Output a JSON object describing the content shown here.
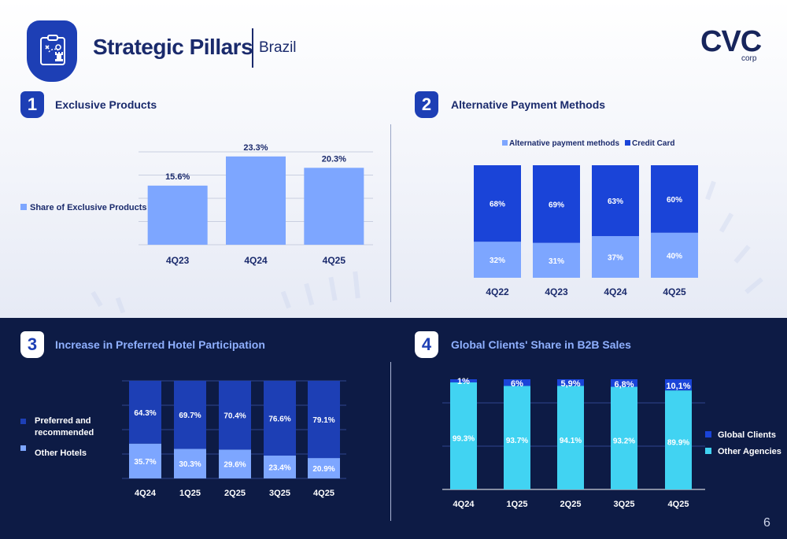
{
  "header": {
    "title": "Strategic Pillars",
    "subtitle": "Brazil",
    "logo": "CVC",
    "logo_sub": "corp",
    "page_number": "6"
  },
  "colors": {
    "dark_blue": "#1d3fb5",
    "mid_blue": "#1a44d8",
    "light_blue": "#7da6ff",
    "cyan": "#41d3f2",
    "navy_bg": "#0d1b45"
  },
  "sections": [
    {
      "number": "1",
      "title": "Exclusive Products"
    },
    {
      "number": "2",
      "title": "Alternative Payment Methods"
    },
    {
      "number": "3",
      "title": "Increase in Preferred Hotel Participation"
    },
    {
      "number": "4",
      "title": "Global Clients' Share in B2B Sales"
    }
  ],
  "chart_data": [
    {
      "type": "bar",
      "categories": [
        "4Q23",
        "4Q24",
        "4Q25"
      ],
      "values": [
        15.6,
        23.3,
        20.3
      ],
      "labels": [
        "15.6%",
        "23.3%",
        "20.3%"
      ],
      "legend": [
        "Share of Exclusive Products"
      ],
      "ylim": [
        0,
        25
      ],
      "grid": true
    },
    {
      "type": "bar",
      "stacked": true,
      "categories": [
        "4Q22",
        "4Q23",
        "4Q24",
        "4Q25"
      ],
      "series": [
        {
          "name": "Alternative payment methods",
          "values": [
            32,
            31,
            37,
            40
          ],
          "labels": [
            "32%",
            "31%",
            "37%",
            "40%"
          ]
        },
        {
          "name": "Credit Card",
          "values": [
            68,
            69,
            63,
            60
          ],
          "labels": [
            "68%",
            "69%",
            "63%",
            "60%"
          ]
        }
      ],
      "ylim": [
        0,
        100
      ]
    },
    {
      "type": "bar",
      "stacked": true,
      "categories": [
        "4Q24",
        "1Q25",
        "2Q25",
        "3Q25",
        "4Q25"
      ],
      "series": [
        {
          "name": "Other Hotels",
          "values": [
            35.7,
            30.3,
            29.6,
            23.4,
            20.9
          ],
          "labels": [
            "35.7%",
            "30.3%",
            "29.6%",
            "23.4%",
            "20.9%"
          ]
        },
        {
          "name": "Preferred and recommended",
          "values": [
            64.3,
            69.7,
            70.4,
            76.6,
            79.1
          ],
          "labels": [
            "64.3%",
            "69.7%",
            "70.4%",
            "76.6%",
            "79.1%"
          ]
        }
      ],
      "ylim": [
        0,
        100
      ],
      "grid": true
    },
    {
      "type": "bar",
      "stacked": true,
      "categories": [
        "4Q24",
        "1Q25",
        "2Q25",
        "3Q25",
        "4Q25"
      ],
      "series": [
        {
          "name": "Other Agencies",
          "values": [
            99.3,
            93.7,
            94.1,
            93.2,
            89.9
          ],
          "labels": [
            "99.3%",
            "93.7%",
            "94.1%",
            "93.2%",
            "89.9%"
          ]
        },
        {
          "name": "Global Clients",
          "values": [
            1,
            6,
            5.9,
            6.8,
            10.1
          ],
          "labels": [
            "1%",
            "6%",
            "5,9%",
            "6,8%",
            "10,1%"
          ]
        }
      ],
      "ylim": [
        0,
        100
      ],
      "grid": true
    }
  ]
}
